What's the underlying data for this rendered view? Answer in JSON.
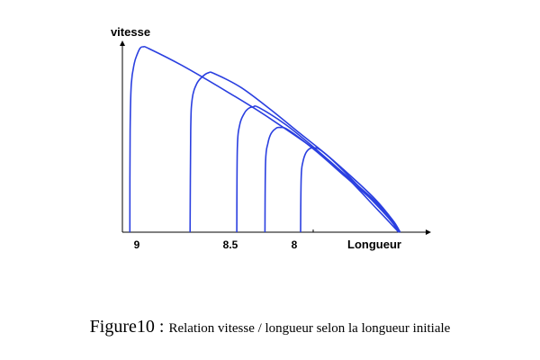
{
  "chart_data": {
    "type": "line",
    "ylabel": "vitesse",
    "xlabel": "Longueur",
    "x_tick_labels": [
      "9",
      "8.5",
      "8"
    ],
    "grid": false,
    "legend": "none",
    "line_color": "#2a3fe0",
    "series": [
      {
        "points": [
          [
            0.025,
            0
          ],
          [
            0.026,
            0.55
          ],
          [
            0.03,
            0.8
          ],
          [
            0.04,
            0.91
          ],
          [
            0.05,
            0.96
          ],
          [
            0.06,
            0.993
          ],
          [
            0.07,
            1.0
          ],
          [
            0.09,
            0.99
          ],
          [
            0.2,
            0.9
          ],
          [
            0.35,
            0.76
          ],
          [
            0.5,
            0.61
          ],
          [
            0.7,
            0.38
          ],
          [
            0.86,
            0.12
          ],
          [
            0.93,
            0.0
          ]
        ]
      },
      {
        "points": [
          [
            0.228,
            0
          ],
          [
            0.23,
            0.55
          ],
          [
            0.235,
            0.72
          ],
          [
            0.25,
            0.8
          ],
          [
            0.27,
            0.84
          ],
          [
            0.29,
            0.86
          ],
          [
            0.31,
            0.855
          ],
          [
            0.4,
            0.78
          ],
          [
            0.5,
            0.66
          ],
          [
            0.6,
            0.53
          ],
          [
            0.7,
            0.4
          ],
          [
            0.8,
            0.24
          ],
          [
            0.9,
            0.07
          ],
          [
            0.93,
            0.0
          ]
        ]
      },
      {
        "points": [
          [
            0.385,
            0
          ],
          [
            0.387,
            0.45
          ],
          [
            0.395,
            0.58
          ],
          [
            0.41,
            0.64
          ],
          [
            0.425,
            0.668
          ],
          [
            0.44,
            0.676
          ],
          [
            0.46,
            0.672
          ],
          [
            0.55,
            0.58
          ],
          [
            0.65,
            0.45
          ],
          [
            0.75,
            0.31
          ],
          [
            0.85,
            0.17
          ],
          [
            0.91,
            0.065
          ],
          [
            0.935,
            0.0
          ]
        ]
      },
      {
        "points": [
          [
            0.48,
            0
          ],
          [
            0.482,
            0.38
          ],
          [
            0.49,
            0.48
          ],
          [
            0.5,
            0.53
          ],
          [
            0.515,
            0.558
          ],
          [
            0.53,
            0.565
          ],
          [
            0.56,
            0.55
          ],
          [
            0.65,
            0.44
          ],
          [
            0.75,
            0.3
          ],
          [
            0.85,
            0.16
          ],
          [
            0.91,
            0.055
          ],
          [
            0.935,
            0.0
          ]
        ]
      },
      {
        "points": [
          [
            0.6,
            0
          ],
          [
            0.602,
            0.3
          ],
          [
            0.608,
            0.38
          ],
          [
            0.617,
            0.425
          ],
          [
            0.63,
            0.45
          ],
          [
            0.645,
            0.455
          ],
          [
            0.67,
            0.44
          ],
          [
            0.75,
            0.33
          ],
          [
            0.85,
            0.18
          ],
          [
            0.91,
            0.065
          ],
          [
            0.935,
            0.0
          ]
        ]
      }
    ]
  },
  "caption": {
    "figure_label": "Figure10",
    "separator": " : ",
    "text": "Relation vitesse / longueur selon la longueur initiale"
  }
}
